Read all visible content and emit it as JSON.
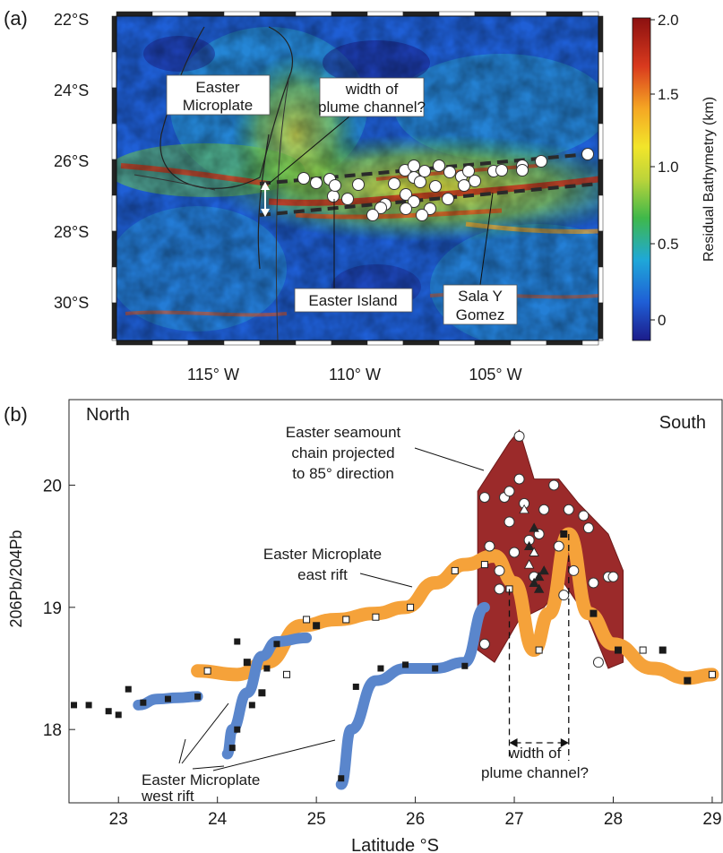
{
  "panel_a": {
    "label": "(a)",
    "lat_ticks": [
      "22°S",
      "24°S",
      "26°S",
      "28°S",
      "30°S"
    ],
    "lon_ticks": [
      "115° W",
      "110° W",
      "105° W"
    ],
    "colorbar": {
      "title": "Residual Bathymetry (km)",
      "ticks": [
        "2.0",
        "1.5",
        "1.0",
        "0.5",
        "0"
      ],
      "colors": [
        "#1c1c8a",
        "#1f5fd6",
        "#1fa8d8",
        "#3fb84a",
        "#bcd43a",
        "#f2e52a",
        "#f5a623",
        "#d93a1e",
        "#8b1010"
      ]
    },
    "annotations": {
      "microplate": [
        "Easter",
        "Microplate"
      ],
      "channel": [
        "width of",
        "plume channel?"
      ],
      "island": "Easter Island",
      "salay": [
        "Sala Y",
        "Gomez"
      ]
    }
  },
  "chart_data": {
    "type": "line",
    "panel_label": "(b)",
    "xlabel": "Latitude °S",
    "ylabel": "206Pb/204Pb",
    "xlim": [
      22.5,
      29.1
    ],
    "ylim": [
      17.4,
      20.7
    ],
    "xticks": [
      23,
      24,
      25,
      26,
      27,
      28,
      29
    ],
    "yticks": [
      18,
      19,
      20
    ],
    "corner_labels": {
      "left": "North",
      "right": "South"
    },
    "annotations": {
      "seamount": [
        "Easter seamount",
        "chain projected",
        "to 85° direction"
      ],
      "east_rift": [
        "Easter Microplate",
        "east rift"
      ],
      "west_rift": [
        "Easter Microplate",
        "west rift"
      ],
      "channel": [
        "width of",
        "plume channel?"
      ]
    },
    "series": [
      {
        "name": "Easter Microplate west rift",
        "color": "#5a86cc",
        "curve": [
          [
            [
              23.2,
              18.2
            ],
            [
              23.4,
              18.25
            ],
            [
              23.6,
              18.26
            ],
            [
              23.8,
              18.27
            ]
          ],
          [
            [
              24.1,
              17.8
            ],
            [
              24.15,
              18.0
            ],
            [
              24.3,
              18.3
            ],
            [
              24.45,
              18.6
            ],
            [
              24.6,
              18.72
            ],
            [
              24.9,
              18.75
            ]
          ],
          [
            [
              25.25,
              17.55
            ],
            [
              25.35,
              18.0
            ],
            [
              25.6,
              18.4
            ],
            [
              25.9,
              18.5
            ],
            [
              26.2,
              18.5
            ],
            [
              26.5,
              18.55
            ],
            [
              26.7,
              19.0
            ]
          ]
        ],
        "points": [
          [
            22.55,
            18.2
          ],
          [
            22.7,
            18.2
          ],
          [
            22.9,
            18.15
          ],
          [
            23.0,
            18.12
          ],
          [
            23.1,
            18.33
          ],
          [
            23.25,
            18.22
          ],
          [
            23.5,
            18.25
          ],
          [
            23.8,
            18.27
          ],
          [
            24.15,
            17.85
          ],
          [
            24.2,
            18.0
          ],
          [
            24.35,
            18.2
          ],
          [
            24.5,
            18.5
          ],
          [
            24.6,
            18.7
          ],
          [
            25.25,
            17.6
          ],
          [
            25.4,
            18.35
          ],
          [
            25.65,
            18.5
          ],
          [
            25.9,
            18.53
          ],
          [
            26.2,
            18.5
          ],
          [
            26.5,
            18.52
          ],
          [
            24.2,
            18.72
          ]
        ]
      },
      {
        "name": "Easter Microplate east rift",
        "color": "#f5a23a",
        "curve": [
          [
            23.8,
            18.48
          ],
          [
            24.2,
            18.45
          ],
          [
            24.5,
            18.55
          ],
          [
            24.85,
            18.85
          ],
          [
            25.2,
            18.9
          ],
          [
            25.6,
            18.95
          ],
          [
            25.9,
            19.0
          ],
          [
            26.2,
            19.2
          ],
          [
            26.5,
            19.35
          ],
          [
            26.8,
            19.42
          ],
          [
            27.0,
            19.2
          ],
          [
            27.2,
            18.65
          ],
          [
            27.35,
            18.95
          ],
          [
            27.55,
            19.6
          ],
          [
            27.75,
            18.95
          ],
          [
            28.0,
            18.7
          ],
          [
            28.4,
            18.5
          ],
          [
            28.75,
            18.42
          ],
          [
            29.0,
            18.45
          ]
        ],
        "points": [
          [
            23.9,
            18.48
          ],
          [
            24.3,
            18.55
          ],
          [
            24.45,
            18.3
          ],
          [
            24.7,
            18.45
          ],
          [
            24.9,
            18.9
          ],
          [
            25.0,
            18.85
          ],
          [
            25.3,
            18.9
          ],
          [
            25.6,
            18.92
          ],
          [
            25.95,
            19.0
          ],
          [
            26.4,
            19.3
          ],
          [
            26.7,
            19.35
          ],
          [
            26.95,
            19.15
          ],
          [
            27.25,
            18.65
          ],
          [
            27.5,
            19.6
          ],
          [
            27.8,
            18.95
          ],
          [
            28.05,
            18.65
          ],
          [
            28.3,
            18.65
          ],
          [
            28.5,
            18.65
          ],
          [
            28.75,
            18.4
          ],
          [
            29.0,
            18.45
          ]
        ]
      },
      {
        "name": "Easter seamount chain projected to 85° direction",
        "color": "#9b2a2a",
        "outline": [
          [
            26.63,
            19.05
          ],
          [
            26.63,
            19.95
          ],
          [
            26.95,
            20.35
          ],
          [
            27.05,
            20.45
          ],
          [
            27.2,
            20.05
          ],
          [
            27.45,
            20.05
          ],
          [
            27.65,
            19.85
          ],
          [
            27.95,
            19.6
          ],
          [
            28.1,
            19.3
          ],
          [
            28.1,
            18.55
          ],
          [
            27.95,
            18.5
          ],
          [
            27.75,
            18.9
          ],
          [
            27.5,
            19.2
          ],
          [
            27.3,
            19.0
          ],
          [
            27.05,
            18.9
          ],
          [
            26.8,
            18.55
          ],
          [
            26.63,
            18.65
          ]
        ],
        "points": [
          [
            26.7,
            19.9
          ],
          [
            26.75,
            19.5
          ],
          [
            26.85,
            19.3
          ],
          [
            26.9,
            19.9
          ],
          [
            26.95,
            19.7
          ],
          [
            27.0,
            19.45
          ],
          [
            27.05,
            20.05
          ],
          [
            27.05,
            20.4
          ],
          [
            27.1,
            19.85
          ],
          [
            27.15,
            19.55
          ],
          [
            27.2,
            19.25
          ],
          [
            27.25,
            19.6
          ],
          [
            27.3,
            19.8
          ],
          [
            27.4,
            20.0
          ],
          [
            27.45,
            19.5
          ],
          [
            27.5,
            19.1
          ],
          [
            27.55,
            19.8
          ],
          [
            27.6,
            19.3
          ],
          [
            27.7,
            19.75
          ],
          [
            27.75,
            19.65
          ],
          [
            27.8,
            19.2
          ],
          [
            27.85,
            18.55
          ],
          [
            27.95,
            19.25
          ],
          [
            28.0,
            19.25
          ],
          [
            26.85,
            19.15
          ],
          [
            26.7,
            18.7
          ],
          [
            26.95,
            19.95
          ]
        ],
        "triangles": [
          [
            27.1,
            19.8
          ],
          [
            27.15,
            19.5
          ],
          [
            27.2,
            19.65
          ],
          [
            27.2,
            19.45
          ],
          [
            27.25,
            19.25
          ],
          [
            27.3,
            19.3
          ],
          [
            27.15,
            19.35
          ],
          [
            27.2,
            19.2
          ],
          [
            27.25,
            19.15
          ]
        ]
      }
    ]
  }
}
